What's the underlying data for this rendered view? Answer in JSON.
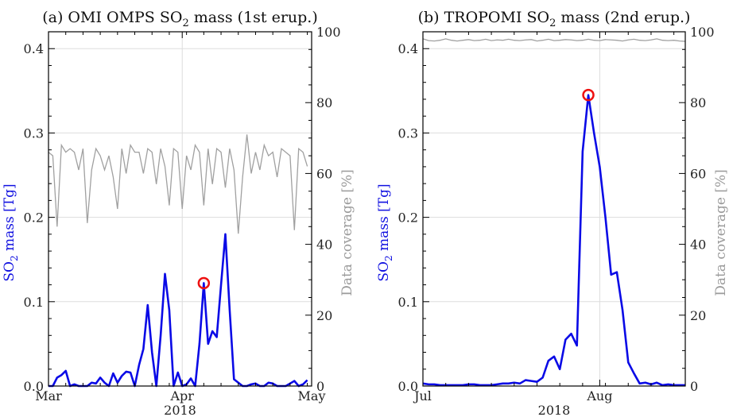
{
  "chart_data": [
    {
      "type": "line",
      "title": "(a) OMI OMPS SO",
      "title_sub": "2",
      "title_rest": " mass (1st erup.)",
      "xlabel": "2018",
      "ylabel_left": "SO",
      "ylabel_left_sub": "2",
      "ylabel_left_rest": " mass [Tg]",
      "ylabel_right": "Data coverage [%]",
      "xlim": [
        0,
        61
      ],
      "ylim_left": [
        0,
        0.42
      ],
      "ylim_right": [
        0,
        100
      ],
      "left_ticks": [
        0.0,
        0.1,
        0.2,
        0.3,
        0.4
      ],
      "left_tick_labels": [
        "0.0",
        "0.1",
        "0.2",
        "0.3",
        "0.4"
      ],
      "right_ticks": [
        0,
        20,
        40,
        60,
        80,
        100
      ],
      "right_tick_labels": [
        "0",
        "20",
        "40",
        "60",
        "80",
        "100"
      ],
      "x_ticks": [
        0,
        31,
        61
      ],
      "x_tick_labels": [
        "Mar",
        "Apr",
        "May"
      ],
      "grid": true,
      "colors": {
        "so2": "#0a0ae6",
        "coverage": "#a0a0a0",
        "marker": "#ee1111"
      },
      "series": [
        {
          "values": [
            0.0,
            0.0,
            0.01,
            0.013,
            0.018,
            0.0,
            0.002,
            0.0,
            0.0,
            0.0,
            0.004,
            0.003,
            0.01,
            0.004,
            0.0,
            0.015,
            0.004,
            0.012,
            0.017,
            0.016,
            0.0,
            0.025,
            0.044,
            0.096,
            0.04,
            0.0,
            0.06,
            0.133,
            0.09,
            0.0,
            0.016,
            0.0,
            0.002,
            0.009,
            0.0,
            0.05,
            0.122,
            0.05,
            0.065,
            0.058,
            0.12,
            0.18,
            0.09,
            0.008,
            0.004,
            0.0,
            0.0,
            0.002,
            0.003,
            0.0,
            0.0,
            0.004,
            0.003,
            0.0,
            0.0,
            0.0,
            0.003,
            0.006,
            0.0,
            0.002,
            0.007
          ]
        },
        {
          "values": [
            66,
            65,
            45,
            68,
            66,
            67,
            66,
            61,
            67,
            46,
            61,
            67,
            65,
            61,
            65,
            59,
            50,
            67,
            60,
            68,
            66,
            66,
            60,
            67,
            66,
            57,
            67,
            62,
            51,
            67,
            66,
            50,
            65,
            61,
            68,
            66,
            51,
            67,
            57,
            67,
            66,
            56,
            67,
            61,
            43,
            59,
            71,
            60,
            66,
            61,
            68,
            65,
            66,
            59,
            67,
            66,
            65,
            44,
            67,
            66,
            62
          ]
        }
      ],
      "marker": {
        "x": 36,
        "y": 0.122
      }
    },
    {
      "type": "line",
      "title": "(b) TROPOMI SO",
      "title_sub": "2",
      "title_rest": " mass (2nd erup.)",
      "xlabel": "2018",
      "ylabel_left": "SO",
      "ylabel_left_sub": "2",
      "ylabel_left_rest": " mass [Tg]",
      "ylabel_right": "Data coverage [%]",
      "xlim": [
        0,
        46
      ],
      "ylim_left": [
        0,
        0.42
      ],
      "ylim_right": [
        0,
        100
      ],
      "left_ticks": [
        0.0,
        0.1,
        0.2,
        0.3,
        0.4
      ],
      "left_tick_labels": [
        "0.0",
        "0.1",
        "0.2",
        "0.3",
        "0.4"
      ],
      "right_ticks": [
        0,
        20,
        40,
        60,
        80,
        100
      ],
      "right_tick_labels": [
        "0",
        "20",
        "40",
        "60",
        "80",
        "100"
      ],
      "x_ticks": [
        0,
        31
      ],
      "x_tick_labels": [
        "Jul",
        "Aug"
      ],
      "grid": true,
      "colors": {
        "so2": "#0a0ae6",
        "coverage": "#a0a0a0",
        "marker": "#ee1111"
      },
      "series": [
        {
          "values": [
            0.003,
            0.002,
            0.002,
            0.001,
            0.001,
            0.001,
            0.001,
            0.001,
            0.002,
            0.002,
            0.001,
            0.001,
            0.001,
            0.002,
            0.003,
            0.003,
            0.004,
            0.003,
            0.007,
            0.006,
            0.005,
            0.01,
            0.03,
            0.035,
            0.02,
            0.055,
            0.062,
            0.048,
            0.278,
            0.345,
            0.3,
            0.26,
            0.2,
            0.132,
            0.135,
            0.09,
            0.028,
            0.015,
            0.003,
            0.004,
            0.002,
            0.004,
            0.001,
            0.002,
            0.001,
            0.001,
            0.001
          ]
        },
        {
          "values": [
            98.0,
            97.5,
            97.4,
            97.6,
            98.0,
            97.6,
            97.4,
            97.6,
            97.8,
            97.5,
            97.6,
            97.9,
            97.5,
            97.7,
            97.6,
            97.9,
            97.6,
            97.5,
            97.7,
            97.8,
            97.4,
            97.6,
            97.9,
            97.5,
            97.6,
            97.8,
            97.7,
            97.5,
            97.6,
            97.9,
            97.6,
            97.5,
            97.8,
            97.7,
            97.6,
            97.4,
            97.7,
            97.9,
            97.6,
            97.5,
            97.7,
            98.0,
            97.6,
            97.5,
            97.6,
            97.4,
            97.3
          ]
        }
      ],
      "marker": {
        "x": 29,
        "y": 0.345
      }
    }
  ]
}
